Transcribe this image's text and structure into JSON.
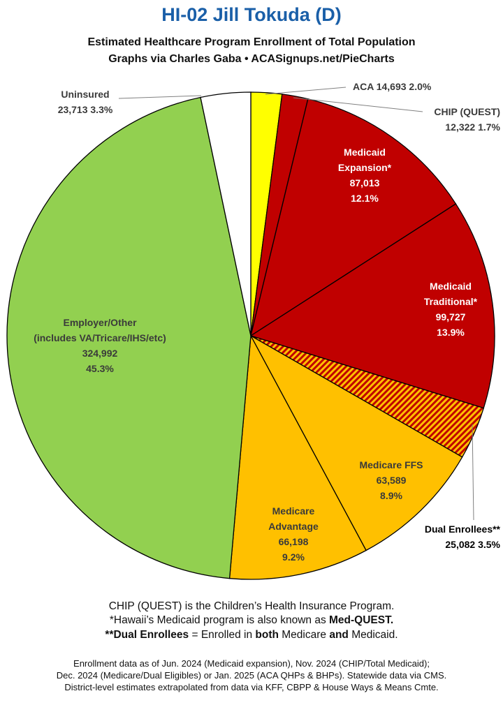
{
  "header": {
    "title": "HI-02 Jill Tokuda (D)",
    "subtitle_1": "Estimated Healthcare Program Enrollment of Total Population",
    "subtitle_2": "Graphs via Charles Gaba  •  ACASignups.net/PieCharts"
  },
  "colors": {
    "title": "#1a5fa8",
    "aca": "#ffff00",
    "medicaid": "#c00000",
    "medicare": "#ffc000",
    "employer": "#92d050",
    "uninsured": "#ffffff",
    "dark_text": "#3a3a3a",
    "white_text": "#ffffff"
  },
  "chart_data": {
    "type": "pie",
    "title": "HI-02 Jill Tokuda (D)",
    "start": "12 o'clock",
    "direction": "clockwise",
    "slices": [
      {
        "name": "ACA",
        "value": 14693,
        "percent": 2.0,
        "color": "#ffff00",
        "pattern": "solid",
        "label_lines": [
          "ACA 14,693 2.0%"
        ]
      },
      {
        "name": "CHIP (QUEST)",
        "value": 12322,
        "percent": 1.7,
        "color": "#c00000",
        "pattern": "solid",
        "label_lines": [
          "CHIP (QUEST)",
          "12,322 1.7%"
        ]
      },
      {
        "name": "Medicaid Expansion*",
        "value": 87013,
        "percent": 12.1,
        "color": "#c00000",
        "pattern": "solid",
        "label_lines": [
          "Medicaid",
          "Expansion*",
          "87,013",
          "12.1%"
        ]
      },
      {
        "name": "Medicaid Traditional*",
        "value": 99727,
        "percent": 13.9,
        "color": "#c00000",
        "pattern": "solid",
        "label_lines": [
          "Medicaid",
          "Traditional*",
          "99,727",
          "13.9%"
        ]
      },
      {
        "name": "Dual Enrollees**",
        "value": 25082,
        "percent": 3.5,
        "color": "#c00000",
        "pattern": "hatched",
        "label_lines": [
          "Dual Enrollees**",
          "25,082 3.5%"
        ]
      },
      {
        "name": "Medicare FFS",
        "value": 63589,
        "percent": 8.9,
        "color": "#ffc000",
        "pattern": "solid",
        "label_lines": [
          "Medicare FFS",
          "63,589",
          "8.9%"
        ]
      },
      {
        "name": "Medicare Advantage",
        "value": 66198,
        "percent": 9.2,
        "color": "#ffc000",
        "pattern": "solid",
        "label_lines": [
          "Medicare",
          "Advantage",
          "66,198",
          "9.2%"
        ]
      },
      {
        "name": "Employer/Other",
        "value": 324992,
        "percent": 45.3,
        "color": "#92d050",
        "pattern": "solid",
        "label_lines": [
          "Employer/Other",
          "(includes VA/Tricare/IHS/etc)",
          "324,992",
          "45.3%"
        ]
      },
      {
        "name": "Uninsured",
        "value": 23713,
        "percent": 3.3,
        "color": "#ffffff",
        "pattern": "solid",
        "label_lines": [
          "Uninsured",
          "23,713 3.3%"
        ]
      }
    ]
  },
  "notes": {
    "line1": "CHIP (QUEST) is the Children’s Health Insurance Program.",
    "line2_prefix": "*Hawaii’s Medicaid program is also known as ",
    "line2_bold": "Med-QUEST.",
    "line3_bold1": "**Dual Enrollees",
    "line3_mid1": " = Enrolled in ",
    "line3_bold2": "both",
    "line3_mid2": " Medicare ",
    "line3_bold3": "and",
    "line3_end": " Medicaid."
  },
  "footer": {
    "line1": "Enrollment data as of Jun. 2024 (Medicaid expansion), Nov. 2024 (CHIP/Total Medicaid);",
    "line2": "Dec. 2024 (Medicare/Dual Eligibles) or Jan. 2025 (ACA QHPs & BHPs). Statewide data via CMS.",
    "line3": "District-level estimates extrapolated from data via KFF, CBPP & House Ways & Means Cmte."
  }
}
